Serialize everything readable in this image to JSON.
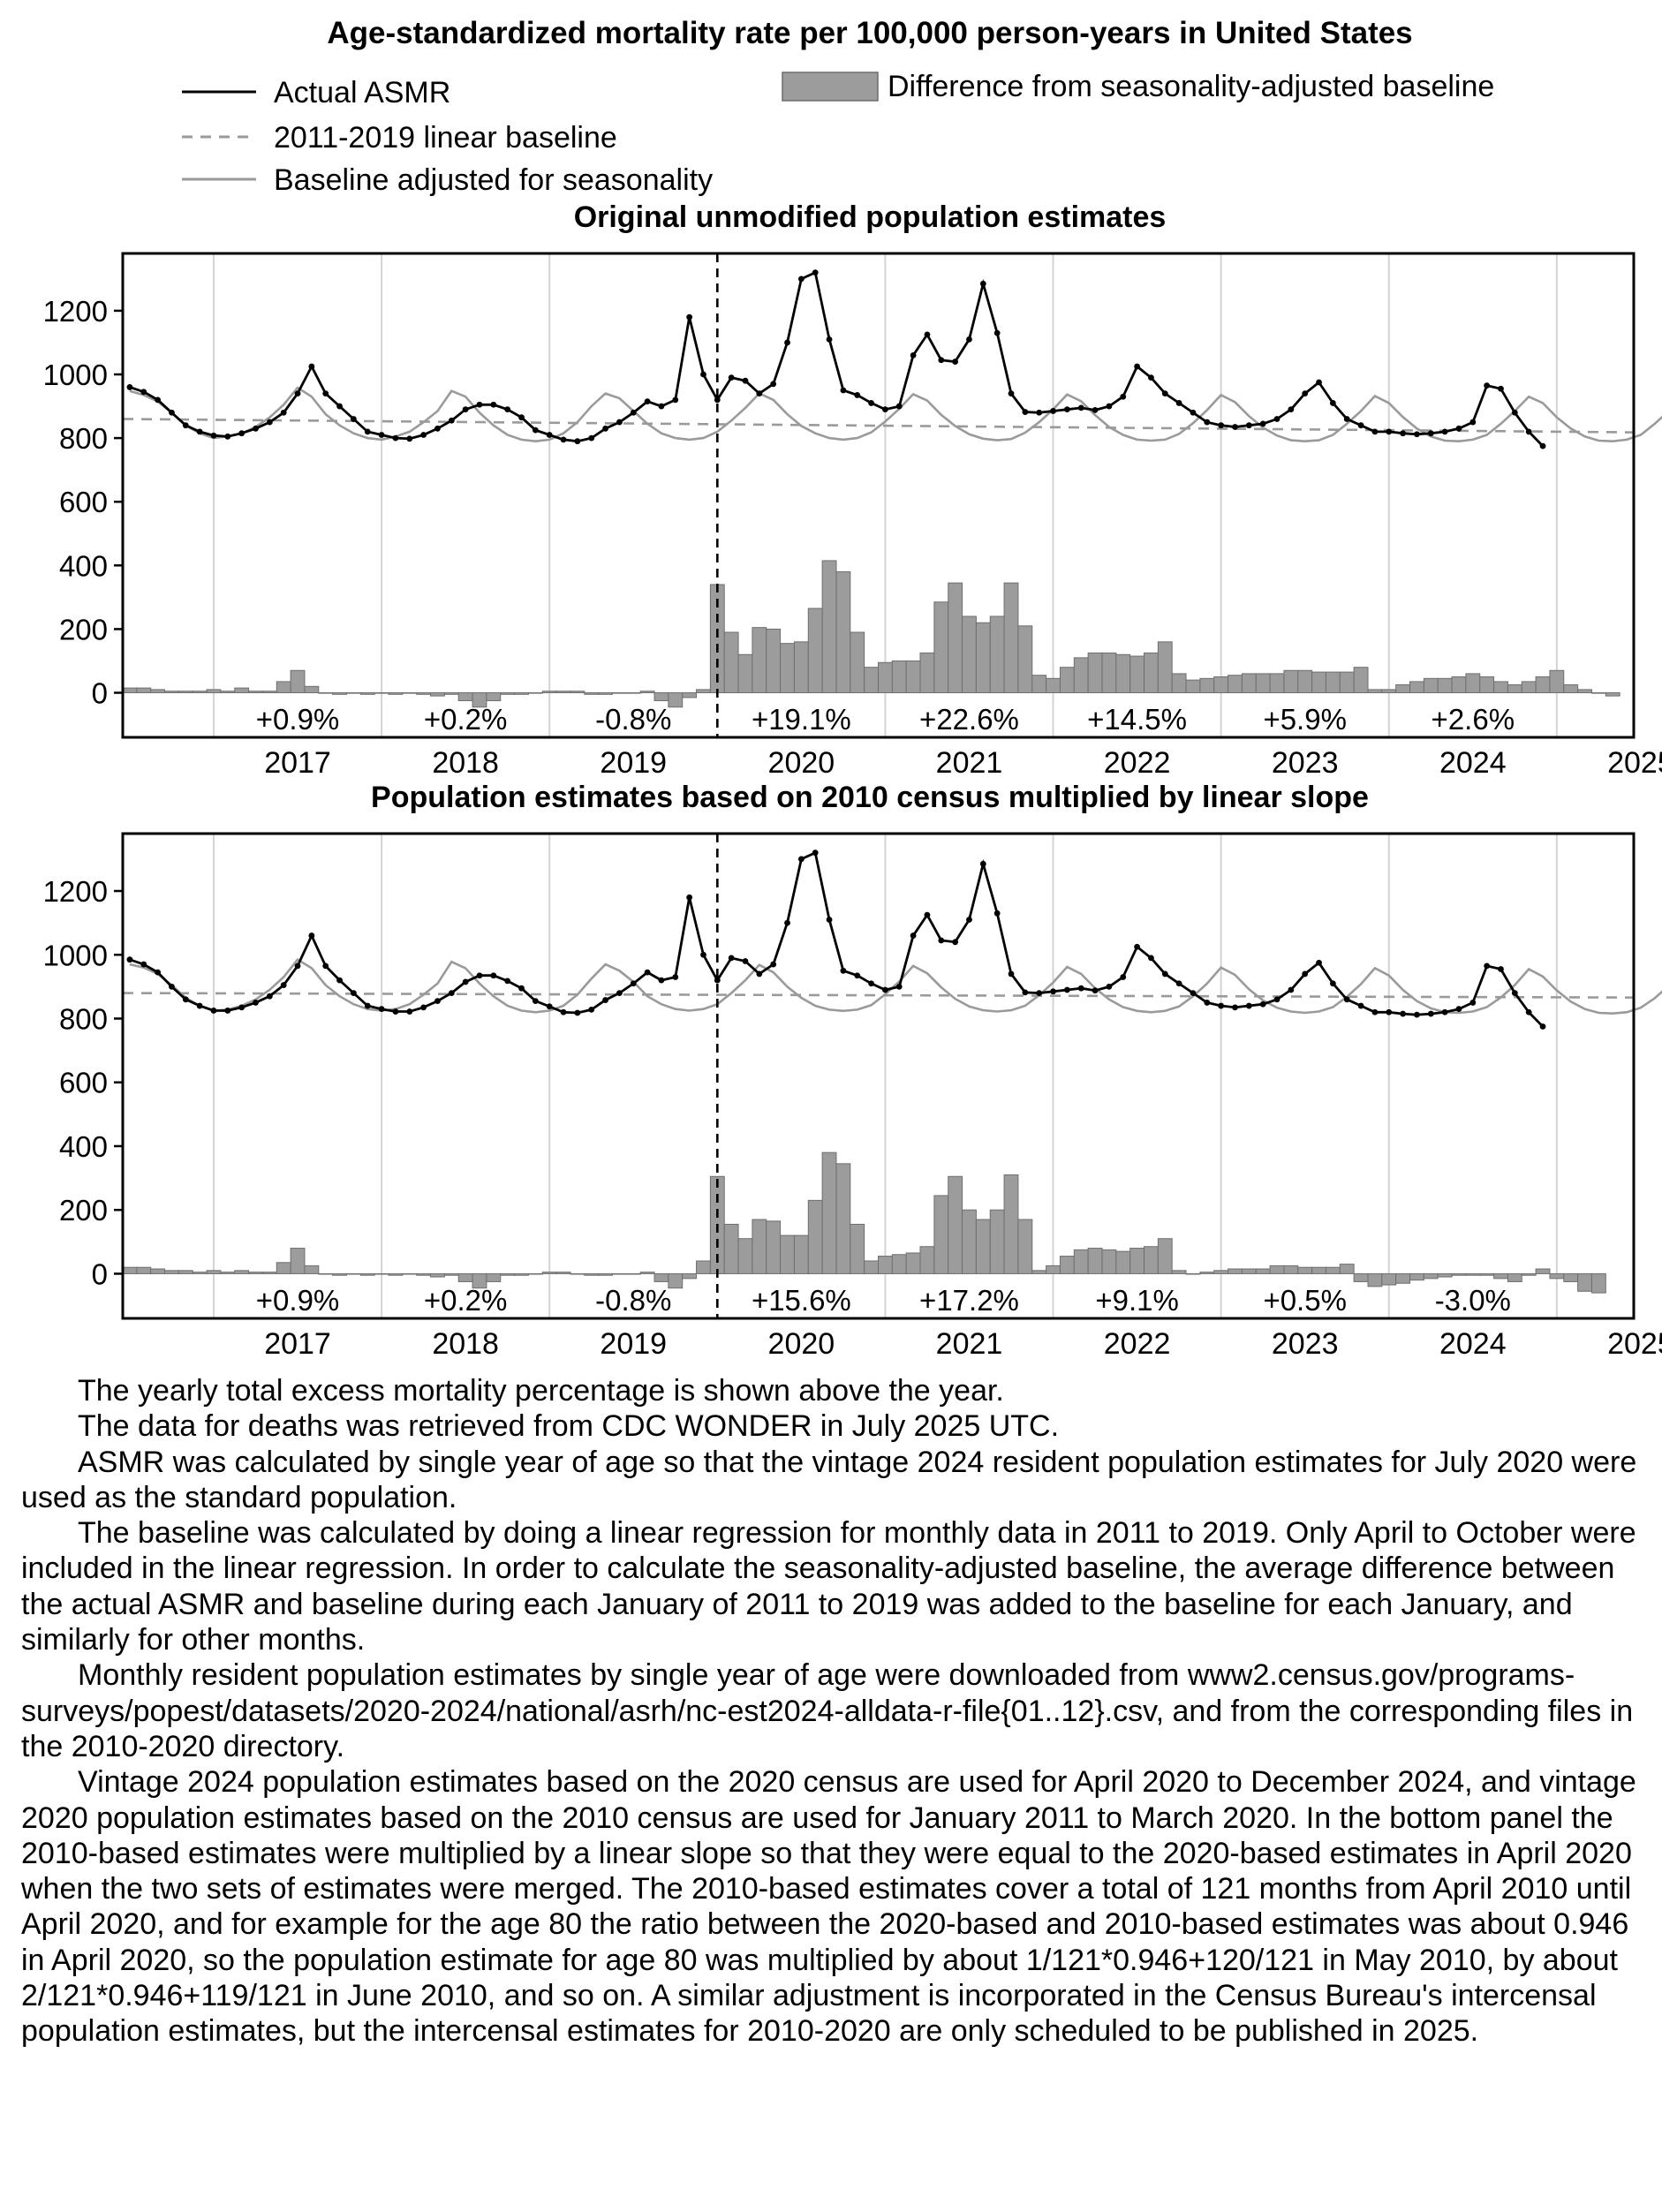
{
  "figure": {
    "title": "Age-standardized mortality rate per 100,000 person-years in United States",
    "legend": {
      "actual": "Actual ASMR",
      "linear": "2011-2019 linear baseline",
      "seasonal": "Baseline adjusted for seasonality",
      "difference": "Difference from seasonality-adjusted baseline"
    },
    "colors": {
      "actual": "#000000",
      "linear": "#9a9a9a",
      "seasonal": "#9a9a9a",
      "bars": "#9c9c9c",
      "gridlines": "#d4d4d4"
    }
  },
  "chart_data": [
    {
      "type": "line",
      "title": "Original unmodified population estimates",
      "xlabel": "",
      "ylabel": "",
      "ylim": [
        -140,
        1380
      ],
      "yticks": [
        0,
        200,
        400,
        600,
        800,
        1000,
        1200
      ],
      "year_labels": [
        "2017",
        "2018",
        "2019",
        "2020",
        "2021",
        "2022",
        "2023",
        "2024",
        "2025"
      ],
      "x_start": "2016-07",
      "x_end": "2025-06",
      "first_point": "2016-07",
      "pandemic_line": "2020-01",
      "grid": "vertical lines at each January",
      "yearly_excess": [
        "+0.9%",
        "+0.2%",
        "-0.8%",
        "+19.1%",
        "+22.6%",
        "+14.5%",
        "+5.9%",
        "+2.6%",
        ""
      ],
      "series": [
        {
          "name": "Actual ASMR",
          "values": [
            960,
            945,
            920,
            880,
            840,
            820,
            808,
            805,
            815,
            830,
            850,
            880,
            940,
            1025,
            940,
            900,
            860,
            820,
            810,
            800,
            798,
            810,
            830,
            855,
            890,
            905,
            905,
            890,
            865,
            825,
            810,
            795,
            790,
            800,
            830,
            850,
            880,
            915,
            900,
            920,
            1180,
            1000,
            920,
            990,
            980,
            940,
            970,
            1100,
            1300,
            1320,
            1110,
            950,
            935,
            910,
            890,
            900,
            1060,
            1125,
            1045,
            1040,
            1110,
            1285,
            1130,
            940,
            882,
            880,
            885,
            890,
            895,
            888,
            900,
            930,
            1025,
            990,
            940,
            910,
            880,
            850,
            840,
            835,
            840,
            845,
            860,
            890,
            940,
            975,
            910,
            860,
            840,
            820,
            820,
            815,
            812,
            815,
            820,
            830,
            850,
            965,
            955,
            880,
            820,
            775
          ]
        },
        {
          "name": "2011-2019 linear baseline",
          "start": 860,
          "end": 818
        },
        {
          "name": "Baseline adjusted for seasonality",
          "values": [
            948,
            935,
            915,
            880,
            840,
            815,
            800,
            805,
            815,
            835,
            865,
            905,
            958,
            930,
            875,
            840,
            815,
            800,
            795,
            805,
            820,
            850,
            885,
            948,
            930,
            880,
            840,
            810,
            795,
            790,
            795,
            815,
            850,
            900,
            940,
            925,
            885,
            845,
            815,
            800,
            795,
            800,
            820,
            855,
            895,
            940,
            920,
            875,
            838,
            815,
            800,
            795,
            800,
            818,
            852,
            892,
            938,
            918,
            873,
            838,
            812,
            798,
            793,
            797,
            817,
            850,
            890,
            937,
            916,
            872,
            835,
            810,
            795,
            792,
            795,
            813,
            847,
            888,
            935,
            913,
            869,
            833,
            808,
            793,
            790,
            793,
            810,
            845,
            885,
            932,
            910,
            866,
            830,
            805,
            792,
            790,
            795,
            810,
            845,
            885,
            930,
            910,
            865,
            830,
            805,
            792,
            790,
            795,
            810,
            845,
            885
          ]
        },
        {
          "name": "Difference from seasonality-adjusted baseline",
          "values": [
            15,
            15,
            10,
            5,
            5,
            5,
            10,
            5,
            15,
            5,
            5,
            35,
            70,
            20,
            0,
            -5,
            0,
            -5,
            0,
            -5,
            0,
            -5,
            -10,
            -5,
            -25,
            -45,
            -25,
            -5,
            -5,
            0,
            5,
            5,
            5,
            -5,
            -5,
            0,
            0,
            5,
            -25,
            -45,
            -15,
            10,
            340,
            190,
            120,
            205,
            200,
            155,
            160,
            265,
            415,
            380,
            190,
            80,
            95,
            100,
            100,
            125,
            285,
            345,
            240,
            220,
            240,
            345,
            210,
            55,
            45,
            80,
            110,
            125,
            125,
            120,
            115,
            125,
            160,
            60,
            40,
            45,
            50,
            55,
            60,
            60,
            60,
            70,
            70,
            65,
            65,
            65,
            80,
            10,
            10,
            25,
            35,
            45,
            45,
            50,
            60,
            50,
            35,
            25,
            35,
            50,
            70,
            25,
            10,
            0,
            -10
          ]
        }
      ]
    },
    {
      "type": "line",
      "title": "Population estimates based on 2010 census multiplied by linear slope",
      "xlabel": "",
      "ylabel": "",
      "ylim": [
        -140,
        1380
      ],
      "yticks": [
        0,
        200,
        400,
        600,
        800,
        1000,
        1200
      ],
      "year_labels": [
        "2017",
        "2018",
        "2019",
        "2020",
        "2021",
        "2022",
        "2023",
        "2024",
        "2025"
      ],
      "x_start": "2016-07",
      "x_end": "2025-06",
      "first_point": "2016-07",
      "pandemic_line": "2020-01",
      "grid": "vertical lines at each January",
      "yearly_excess": [
        "+0.9%",
        "+0.2%",
        "-0.8%",
        "+15.6%",
        "+17.2%",
        "+9.1%",
        "+0.5%",
        "-3.0%",
        ""
      ],
      "series": [
        {
          "name": "Actual ASMR",
          "values": [
            985,
            970,
            945,
            900,
            860,
            840,
            825,
            825,
            835,
            850,
            870,
            905,
            965,
            1060,
            965,
            920,
            880,
            840,
            830,
            822,
            822,
            835,
            855,
            880,
            915,
            935,
            935,
            918,
            895,
            855,
            838,
            820,
            818,
            828,
            858,
            880,
            910,
            945,
            920,
            930,
            1180,
            1000,
            920,
            990,
            980,
            940,
            970,
            1100,
            1300,
            1320,
            1110,
            950,
            935,
            910,
            890,
            900,
            1060,
            1125,
            1045,
            1040,
            1110,
            1285,
            1130,
            940,
            882,
            880,
            885,
            890,
            895,
            888,
            900,
            930,
            1025,
            990,
            940,
            910,
            880,
            850,
            840,
            835,
            840,
            845,
            860,
            890,
            940,
            975,
            910,
            860,
            840,
            820,
            820,
            815,
            812,
            815,
            820,
            830,
            850,
            965,
            955,
            880,
            820,
            775
          ]
        },
        {
          "name": "2011-2019 linear baseline",
          "start": 880,
          "end": 866
        },
        {
          "name": "Baseline adjusted for seasonality",
          "values": [
            970,
            960,
            940,
            905,
            865,
            840,
            825,
            828,
            840,
            860,
            890,
            930,
            985,
            958,
            905,
            870,
            845,
            830,
            825,
            830,
            845,
            875,
            910,
            978,
            958,
            910,
            870,
            840,
            825,
            820,
            825,
            840,
            875,
            925,
            970,
            950,
            915,
            870,
            845,
            830,
            825,
            830,
            845,
            880,
            920,
            968,
            945,
            900,
            865,
            840,
            828,
            824,
            828,
            842,
            876,
            916,
            965,
            942,
            898,
            862,
            838,
            826,
            822,
            826,
            840,
            873,
            913,
            962,
            940,
            895,
            860,
            836,
            824,
            820,
            824,
            838,
            870,
            910,
            960,
            937,
            892,
            857,
            834,
            822,
            818,
            822,
            836,
            868,
            908,
            958,
            935,
            890,
            855,
            832,
            820,
            818,
            822,
            836,
            866,
            905,
            955,
            932,
            888,
            853,
            830,
            818,
            816,
            820,
            834,
            864,
            903
          ]
        },
        {
          "name": "Difference from seasonality-adjusted baseline",
          "values": [
            20,
            20,
            15,
            10,
            10,
            5,
            10,
            5,
            10,
            5,
            5,
            35,
            80,
            25,
            0,
            -5,
            0,
            -5,
            0,
            -5,
            0,
            -5,
            -10,
            -5,
            -25,
            -45,
            -25,
            -5,
            -5,
            0,
            5,
            5,
            0,
            -5,
            -5,
            0,
            0,
            5,
            -25,
            -45,
            -15,
            40,
            305,
            155,
            110,
            170,
            165,
            120,
            120,
            230,
            380,
            345,
            155,
            40,
            55,
            60,
            65,
            85,
            245,
            305,
            200,
            170,
            200,
            310,
            170,
            10,
            25,
            55,
            75,
            80,
            75,
            70,
            80,
            85,
            110,
            10,
            0,
            5,
            10,
            15,
            15,
            15,
            25,
            25,
            20,
            20,
            20,
            30,
            -25,
            -40,
            -35,
            -30,
            -20,
            -15,
            -10,
            -5,
            -5,
            -5,
            -15,
            -25,
            -5,
            15,
            -15,
            -25,
            -55,
            -60
          ]
        }
      ]
    }
  ],
  "notes": [
    "The yearly total excess mortality percentage is shown above the year.",
    "The data for deaths was retrieved from CDC WONDER in July 2025 UTC.",
    "ASMR was calculated by single year of age so that the vintage 2024 resident population estimates for July 2020 were used as the standard population.",
    "The baseline was calculated by doing a linear regression for monthly data in 2011 to 2019. Only April to October were included in the linear regression. In order to calculate the seasonality-adjusted baseline, the average difference between the actual ASMR and baseline during each January of 2011 to 2019 was added to the baseline for each January, and similarly for other months.",
    "Monthly resident population estimates by single year of age were downloaded from www2.census.gov/programs-surveys/popest/datasets/2020-2024/national/asrh/nc-est2024-alldata-r-file{01..12}.csv, and from the corresponding files in the 2010-2020 directory.",
    "Vintage 2024 population estimates based on the 2020 census are used for April 2020 to December 2024, and vintage 2020 population estimates based on the 2010 census are used for January 2011 to March 2020. In the bottom panel the 2010-based estimates were multiplied by a linear slope so that they were equal to the 2020-based estimates in April 2020 when the two sets of estimates were merged. The 2010-based estimates cover a total of 121 months from April 2010 until April 2020, and for example for the age 80 the ratio between the 2020-based and 2010-based estimates was about 0.946 in April 2020, so the population estimate for age 80 was multiplied by about 1/121*0.946+120/121 in May 2010, by about 2/121*0.946+119/121 in June 2010, and so on. A similar adjustment is incorporated in the Census Bureau's intercensal population estimates, but the intercensal estimates for 2010-2020 are only scheduled to be published in 2025."
  ]
}
